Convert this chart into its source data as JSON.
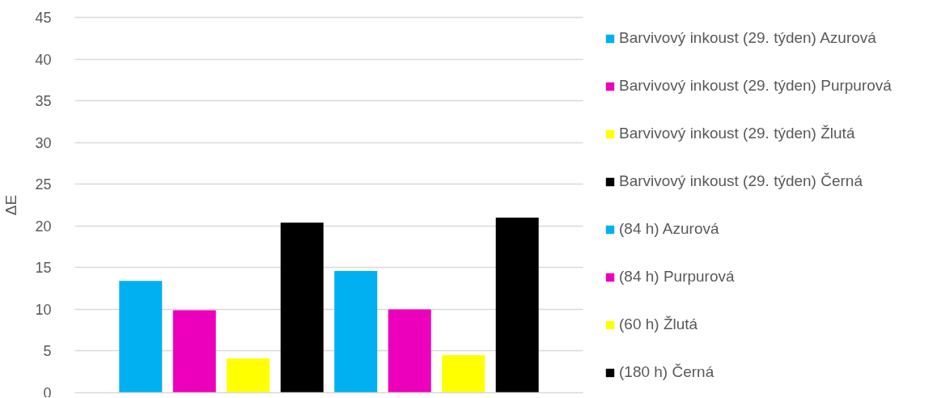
{
  "chart_data": {
    "type": "bar",
    "ylabel": "ΔE",
    "categories": [
      null
    ],
    "series": [
      {
        "name": "Barvivový inkoust (29. týden) Azurová",
        "color": "#00b0f0",
        "values": [
          13.4
        ]
      },
      {
        "name": "Barvivový inkoust (29. týden) Purpurová",
        "color": "#ec00bb",
        "values": [
          9.9
        ]
      },
      {
        "name": "Barvivový inkoust (29. týden) Žlutá",
        "color": "#ffff00",
        "values": [
          4.1
        ]
      },
      {
        "name": "Barvivový inkoust (29. týden) Černá",
        "color": "#000000",
        "values": [
          20.4
        ]
      },
      {
        "name": "(84 h) Azurová",
        "color": "#00b0f0",
        "values": [
          14.6
        ]
      },
      {
        "name": "(84 h) Purpurová",
        "color": "#ec00bb",
        "values": [
          10.0
        ]
      },
      {
        "name": "(60 h) Žlutá",
        "color": "#ffff00",
        "values": [
          4.5
        ]
      },
      {
        "name": "(180 h) Černá",
        "color": "#000000",
        "values": [
          21.0
        ]
      }
    ],
    "ylim": [
      0,
      45
    ],
    "yticks": [
      0,
      5,
      10,
      15,
      20,
      25,
      30,
      35,
      40,
      45
    ],
    "grid": "y",
    "legend": "right"
  }
}
